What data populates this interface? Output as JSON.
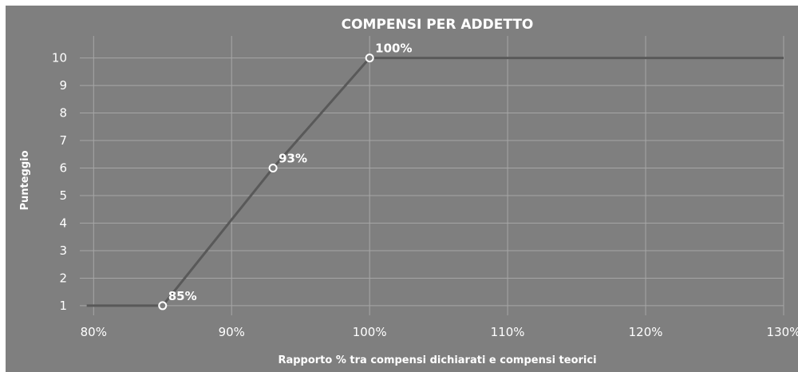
{
  "chart_data": {
    "type": "line",
    "title": "COMPENSI PER ADDETTO",
    "xlabel": "Rapporto % tra compensi dichiarati e compensi teorici",
    "ylabel": "Punteggio",
    "xlim": [
      79,
      130
    ],
    "ylim": [
      0.65,
      10.8
    ],
    "x_ticks": [
      80,
      90,
      100,
      110,
      120,
      130
    ],
    "x_tick_labels": [
      "80%",
      "90%",
      "100%",
      "110%",
      "120%",
      "130%"
    ],
    "y_ticks": [
      1,
      2,
      3,
      4,
      5,
      6,
      7,
      8,
      9,
      10
    ],
    "y_tick_labels": [
      "1",
      "2",
      "3",
      "4",
      "5",
      "6",
      "7",
      "8",
      "9",
      "10"
    ],
    "grid": true,
    "series": [
      {
        "color": "#595959",
        "points": [
          {
            "x": 79.5,
            "y": 1
          },
          {
            "x": 85,
            "y": 1
          },
          {
            "x": 93,
            "y": 6
          },
          {
            "x": 100,
            "y": 10
          },
          {
            "x": 130,
            "y": 10
          }
        ]
      }
    ],
    "markers": [
      {
        "x": 85,
        "y": 1,
        "label": "85%"
      },
      {
        "x": 93,
        "y": 6,
        "label": "93%"
      },
      {
        "x": 100,
        "y": 10,
        "label": "100%"
      }
    ]
  }
}
